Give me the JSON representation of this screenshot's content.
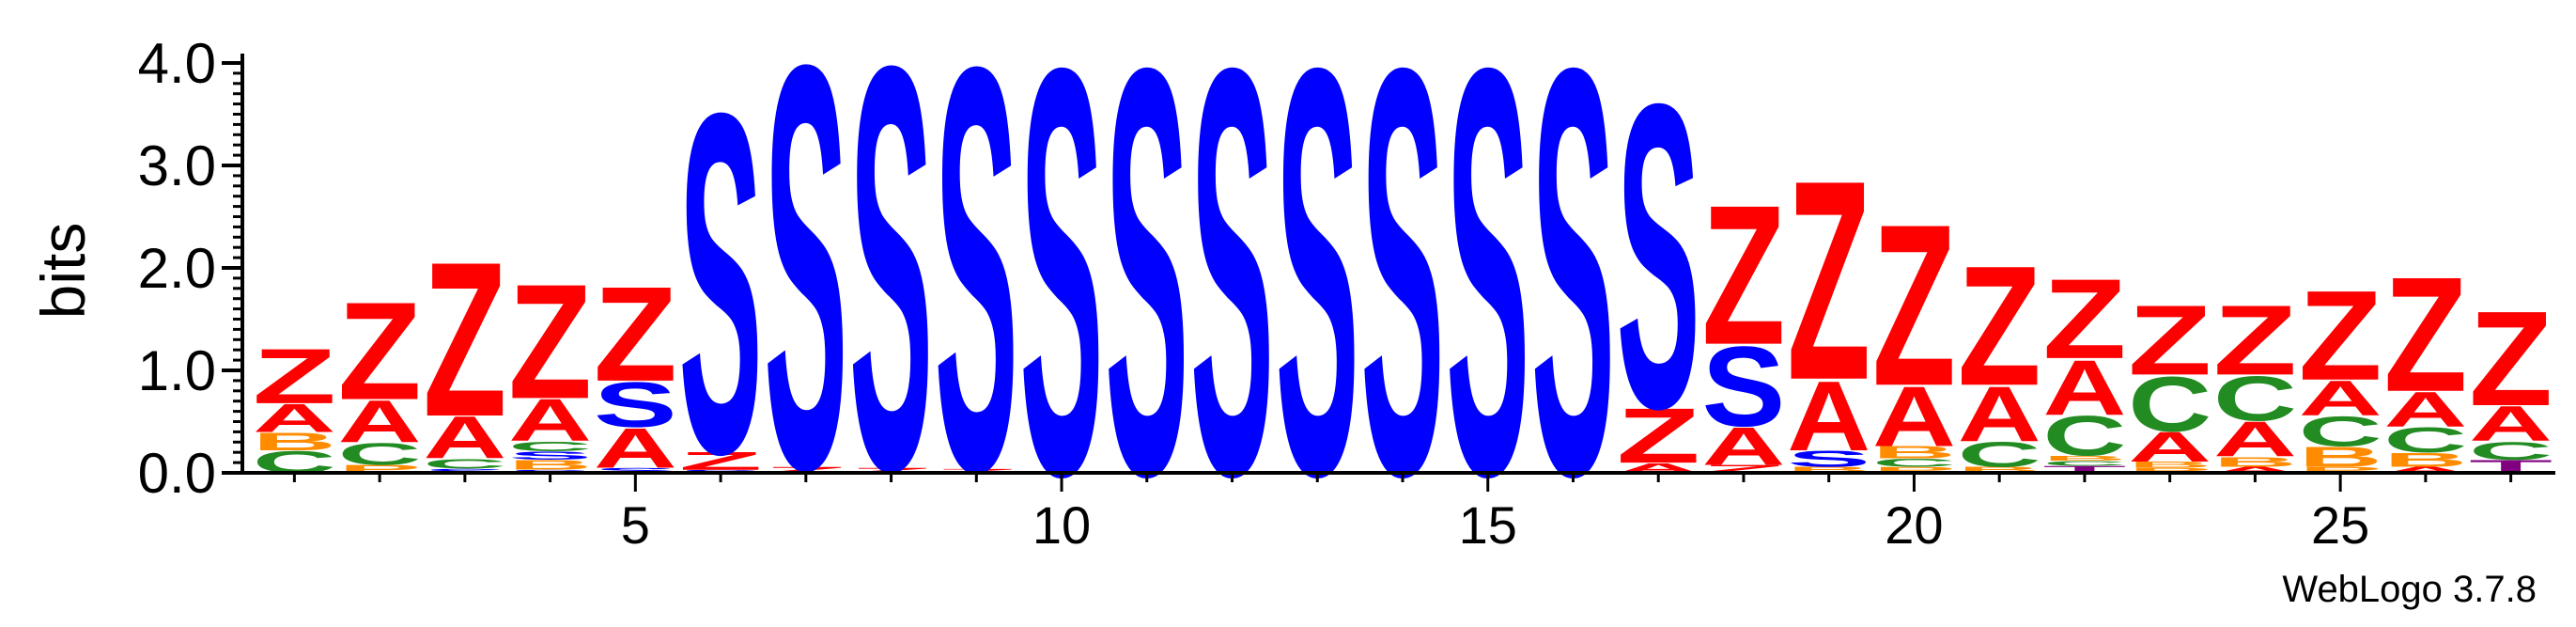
{
  "chart_data": {
    "type": "sequence-logo",
    "ylabel": "bits",
    "ylim": [
      0,
      4.0
    ],
    "yticks": [
      "0.0",
      "1.0",
      "2.0",
      "3.0",
      "4.0"
    ],
    "xticks": [
      "5",
      "10",
      "15",
      "20",
      "25"
    ],
    "xtick_values": [
      5,
      10,
      15,
      20,
      25
    ],
    "positions": [
      1,
      27
    ],
    "credit": "WebLogo 3.7.8",
    "colors": {
      "Z": "#ff0000",
      "A": "#ff0000",
      "S": "#0000ff",
      "C": "#228b22",
      "B": "#ff8c00",
      "T": "#800080",
      "P": "#ff8c00",
      "G": "#228b22"
    },
    "columns": [
      {
        "pos": 1,
        "stack": [
          [
            "C",
            0.22
          ],
          [
            "B",
            0.18
          ],
          [
            "A",
            0.28
          ],
          [
            "Z",
            0.55
          ]
        ]
      },
      {
        "pos": 2,
        "stack": [
          [
            "P",
            0.08
          ],
          [
            "C",
            0.22
          ],
          [
            "A",
            0.42
          ],
          [
            "Z",
            0.98
          ]
        ]
      },
      {
        "pos": 3,
        "stack": [
          [
            "S",
            0.04
          ],
          [
            "C",
            0.1
          ],
          [
            "A",
            0.42
          ],
          [
            "Z",
            1.55
          ]
        ]
      },
      {
        "pos": 4,
        "stack": [
          [
            "S",
            0.03
          ],
          [
            "B",
            0.1
          ],
          [
            "S",
            0.08
          ],
          [
            "C",
            0.1
          ],
          [
            "A",
            0.42
          ],
          [
            "Z",
            1.15
          ]
        ]
      },
      {
        "pos": 5,
        "stack": [
          [
            "S",
            0.05
          ],
          [
            "A",
            0.4
          ],
          [
            "S",
            0.45
          ],
          [
            "Z",
            0.95
          ]
        ]
      },
      {
        "pos": 6,
        "stack": [
          [
            "S",
            0.03
          ],
          [
            "Z",
            0.18
          ],
          [
            "S",
            3.41
          ]
        ]
      },
      {
        "pos": 7,
        "stack": [
          [
            "Z",
            0.06
          ],
          [
            "S",
            4.05
          ]
        ]
      },
      {
        "pos": 8,
        "stack": [
          [
            "Z",
            0.05
          ],
          [
            "S",
            4.05
          ]
        ]
      },
      {
        "pos": 9,
        "stack": [
          [
            "Z",
            0.04
          ],
          [
            "S",
            4.05
          ]
        ]
      },
      {
        "pos": 10,
        "stack": [
          [
            "S",
            4.08
          ]
        ]
      },
      {
        "pos": 11,
        "stack": [
          [
            "S",
            4.08
          ]
        ]
      },
      {
        "pos": 12,
        "stack": [
          [
            "S",
            4.08
          ]
        ]
      },
      {
        "pos": 13,
        "stack": [
          [
            "S",
            4.08
          ]
        ]
      },
      {
        "pos": 14,
        "stack": [
          [
            "S",
            4.08
          ]
        ]
      },
      {
        "pos": 15,
        "stack": [
          [
            "S",
            4.08
          ]
        ]
      },
      {
        "pos": 16,
        "stack": [
          [
            "S",
            4.08
          ]
        ]
      },
      {
        "pos": 17,
        "stack": [
          [
            "A",
            0.1
          ],
          [
            "Z",
            0.55
          ],
          [
            "S",
            3.05
          ]
        ]
      },
      {
        "pos": 18,
        "stack": [
          [
            "Z",
            0.08
          ],
          [
            "A",
            0.38
          ],
          [
            "S",
            0.8
          ],
          [
            "Z",
            1.4
          ]
        ]
      },
      {
        "pos": 19,
        "stack": [
          [
            "B",
            0.06
          ],
          [
            "S",
            0.16
          ],
          [
            "A",
            0.7
          ],
          [
            "Z",
            2.0
          ]
        ]
      },
      {
        "pos": 20,
        "stack": [
          [
            "P",
            0.06
          ],
          [
            "C",
            0.08
          ],
          [
            "B",
            0.12
          ],
          [
            "A",
            0.6
          ],
          [
            "Z",
            1.62
          ]
        ]
      },
      {
        "pos": 21,
        "stack": [
          [
            "B",
            0.06
          ],
          [
            "C",
            0.25
          ],
          [
            "A",
            0.55
          ],
          [
            "Z",
            1.2
          ]
        ]
      },
      {
        "pos": 22,
        "stack": [
          [
            "T",
            0.07
          ],
          [
            "C",
            0.05
          ],
          [
            "B",
            0.05
          ],
          [
            "C",
            0.4
          ],
          [
            "A",
            0.55
          ],
          [
            "Z",
            0.8
          ]
        ]
      },
      {
        "pos": 23,
        "stack": [
          [
            "P",
            0.05
          ],
          [
            "B",
            0.06
          ],
          [
            "A",
            0.3
          ],
          [
            "C",
            0.55
          ],
          [
            "Z",
            0.7
          ]
        ]
      },
      {
        "pos": 24,
        "stack": [
          [
            "A",
            0.06
          ],
          [
            "B",
            0.1
          ],
          [
            "A",
            0.35
          ],
          [
            "C",
            0.45
          ],
          [
            "Z",
            0.7
          ]
        ]
      },
      {
        "pos": 25,
        "stack": [
          [
            "P",
            0.06
          ],
          [
            "B",
            0.2
          ],
          [
            "C",
            0.3
          ],
          [
            "A",
            0.35
          ],
          [
            "Z",
            0.9
          ]
        ]
      },
      {
        "pos": 26,
        "stack": [
          [
            "A",
            0.06
          ],
          [
            "B",
            0.14
          ],
          [
            "C",
            0.25
          ],
          [
            "A",
            0.35
          ],
          [
            "Z",
            1.15
          ]
        ]
      },
      {
        "pos": 27,
        "stack": [
          [
            "T",
            0.13
          ],
          [
            "C",
            0.18
          ],
          [
            "A",
            0.35
          ],
          [
            "Z",
            0.95
          ]
        ]
      }
    ]
  }
}
